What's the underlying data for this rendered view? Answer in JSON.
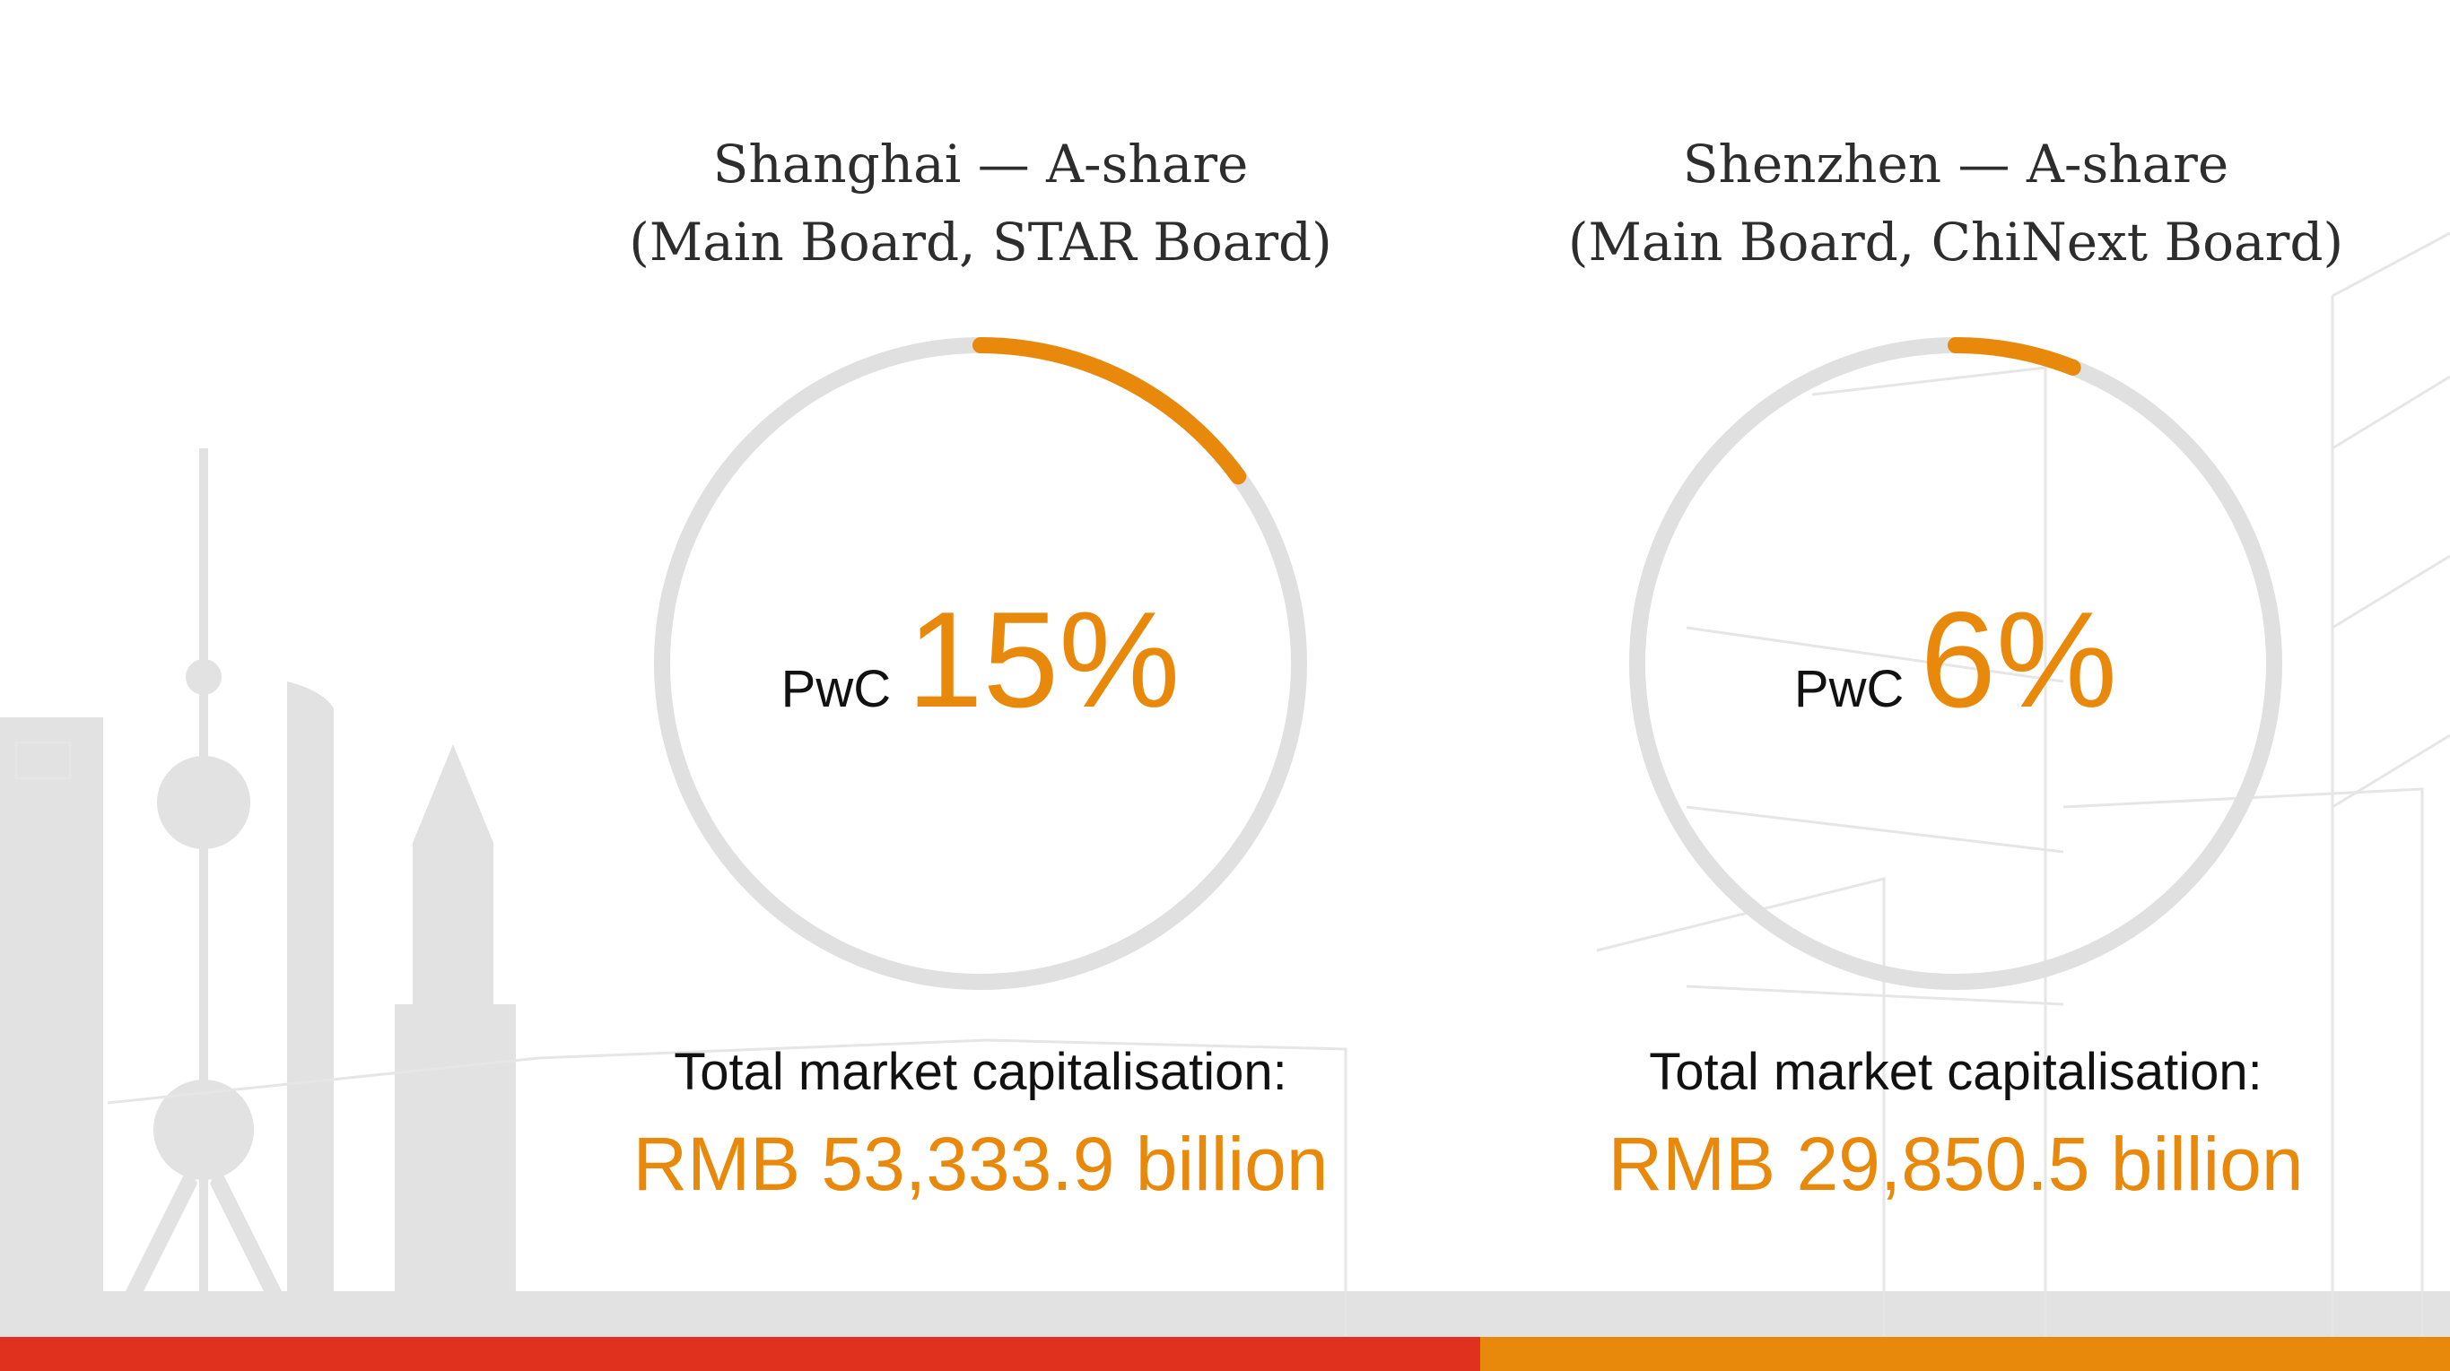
{
  "colors": {
    "accent": "#e8890c",
    "track": "#e0e0e0",
    "bar_red": "#e0301e",
    "bar_orange": "#e8890c",
    "skyline": "#dcdcdc"
  },
  "chart_data": [
    {
      "type": "pie",
      "style": "progress-ring",
      "title_line1": "Shanghai — A-share",
      "title_line2": "(Main Board, STAR Board)",
      "center_prefix": "PwC",
      "center_value_text": "15%",
      "value": 15,
      "max": 100,
      "caption_label": "Total market capitalisation:",
      "caption_value": "RMB 53,333.9 billion"
    },
    {
      "type": "pie",
      "style": "progress-ring",
      "title_line1": "Shenzhen — A-share",
      "title_line2": "(Main Board, ChiNext Board)",
      "center_prefix": "PwC",
      "center_value_text": "6%",
      "value": 6,
      "max": 100,
      "caption_label": "Total market capitalisation:",
      "caption_value": "RMB 29,850.5 billion"
    }
  ]
}
